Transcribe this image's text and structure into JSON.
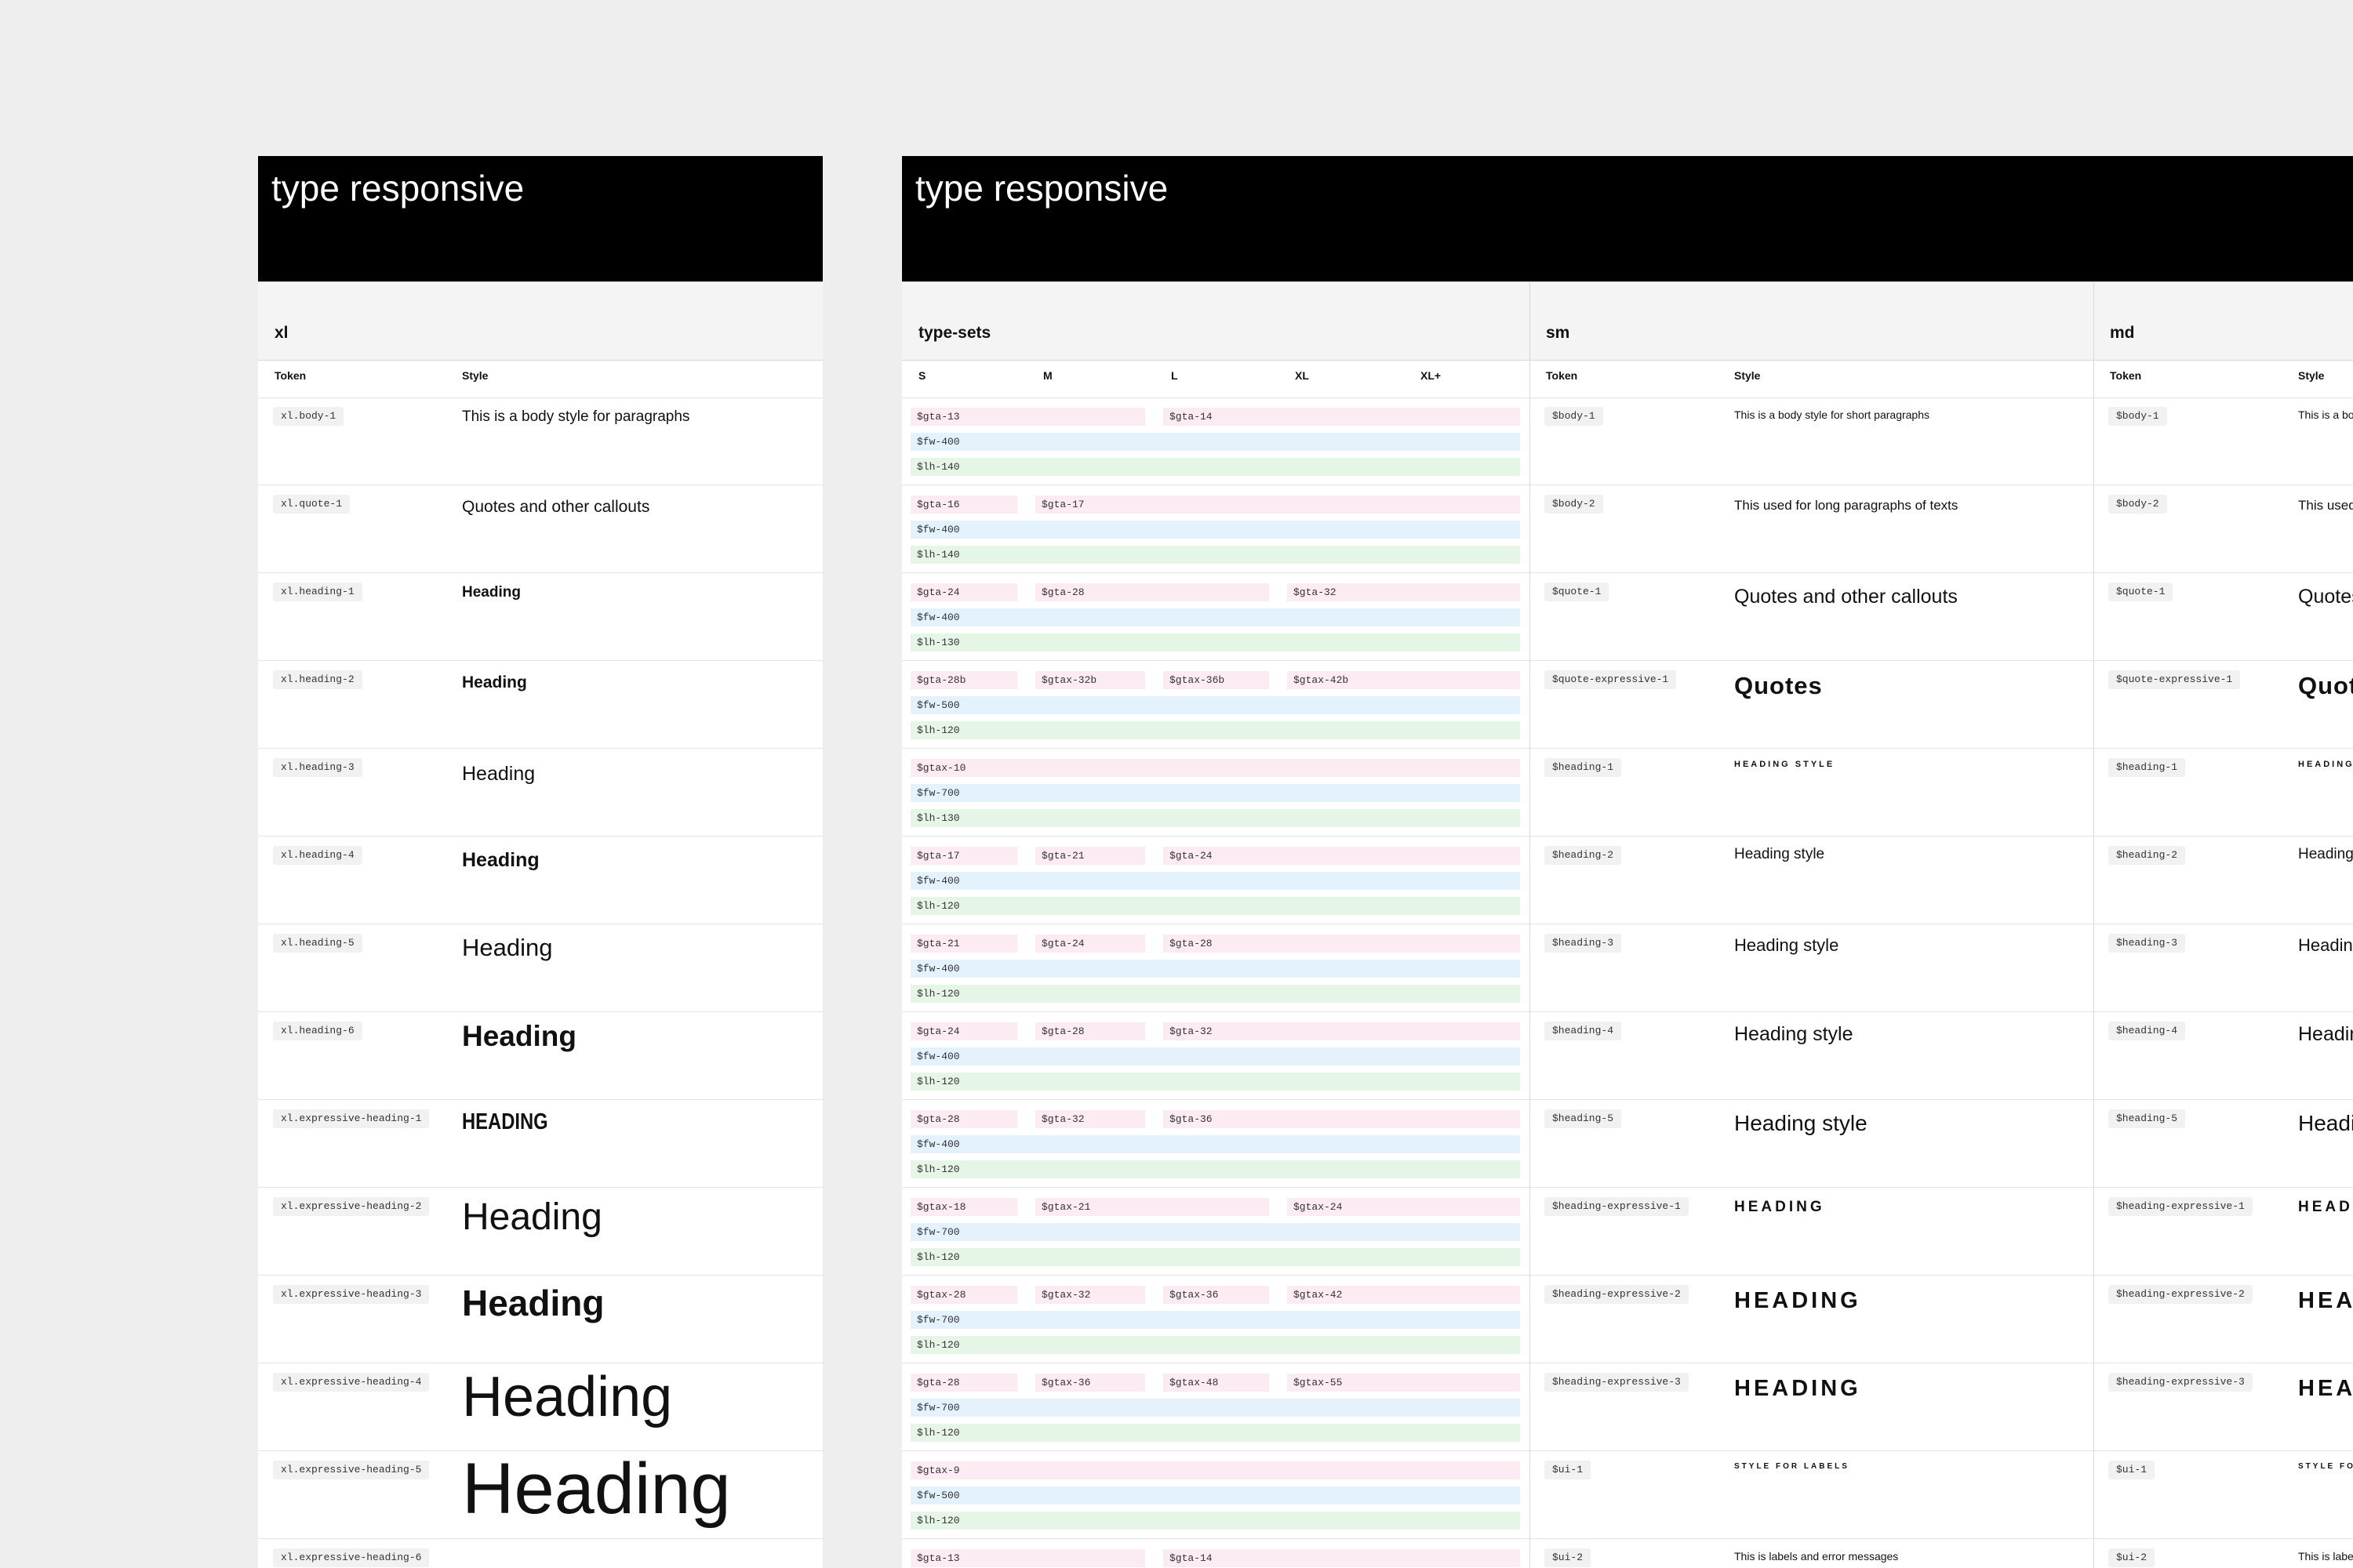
{
  "left_panel": {
    "title": "type responsive",
    "section": "xl",
    "columns": [
      "Token",
      "Style"
    ],
    "rows": [
      {
        "token": "xl.body-1",
        "style": "This is a body style for paragraphs"
      },
      {
        "token": "xl.quote-1",
        "style": "Quotes and other callouts"
      },
      {
        "token": "xl.heading-1",
        "style": "Heading"
      },
      {
        "token": "xl.heading-2",
        "style": "Heading"
      },
      {
        "token": "xl.heading-3",
        "style": "Heading"
      },
      {
        "token": "xl.heading-4",
        "style": "Heading"
      },
      {
        "token": "xl.heading-5",
        "style": "Heading"
      },
      {
        "token": "xl.heading-6",
        "style": "Heading"
      },
      {
        "token": "xl.expressive-heading-1",
        "style": "HEADING"
      },
      {
        "token": "xl.expressive-heading-2",
        "style": "Heading"
      },
      {
        "token": "xl.expressive-heading-3",
        "style": "Heading"
      },
      {
        "token": "xl.expressive-heading-4",
        "style": "Heading"
      },
      {
        "token": "xl.expressive-heading-5",
        "style": "Heading"
      },
      {
        "token": "xl.expressive-heading-6"
      }
    ]
  },
  "right_panel": {
    "title": "type responsive",
    "type_sets": {
      "heading": "type-sets",
      "columns": [
        "S",
        "M",
        "L",
        "XL",
        "XL+"
      ],
      "rows": [
        {
          "sizes": [
            "$gta-13",
            null,
            "$gta-14",
            null,
            null
          ],
          "weight": "$fw-400",
          "line_height": "$lh-140"
        },
        {
          "sizes": [
            "$gta-16",
            "$gta-17",
            null,
            null,
            null
          ],
          "weight": "$fw-400",
          "line_height": "$lh-140"
        },
        {
          "sizes": [
            "$gta-24",
            "$gta-28",
            null,
            "$gta-32",
            null
          ],
          "weight": "$fw-400",
          "line_height": "$lh-130"
        },
        {
          "sizes": [
            "$gta-28b",
            "$gtax-32b",
            "$gtax-36b",
            "$gtax-42b",
            null
          ],
          "weight": "$fw-500",
          "line_height": "$lh-120"
        },
        {
          "sizes": [
            "$gtax-10",
            null,
            null,
            null,
            null
          ],
          "weight": "$fw-700",
          "line_height": "$lh-130"
        },
        {
          "sizes": [
            "$gta-17",
            "$gta-21",
            "$gta-24",
            null,
            null
          ],
          "weight": "$fw-400",
          "line_height": "$lh-120"
        },
        {
          "sizes": [
            "$gta-21",
            "$gta-24",
            "$gta-28",
            null,
            null
          ],
          "weight": "$fw-400",
          "line_height": "$lh-120"
        },
        {
          "sizes": [
            "$gta-24",
            "$gta-28",
            "$gta-32",
            null,
            null
          ],
          "weight": "$fw-400",
          "line_height": "$lh-120"
        },
        {
          "sizes": [
            "$gta-28",
            "$gta-32",
            "$gta-36",
            null,
            null
          ],
          "weight": "$fw-400",
          "line_height": "$lh-120"
        },
        {
          "sizes": [
            "$gtax-18",
            "$gtax-21",
            null,
            "$gtax-24",
            null
          ],
          "weight": "$fw-700",
          "line_height": "$lh-120"
        },
        {
          "sizes": [
            "$gtax-28",
            "$gtax-32",
            "$gtax-36",
            "$gtax-42",
            null
          ],
          "weight": "$fw-700",
          "line_height": "$lh-120"
        },
        {
          "sizes": [
            "$gta-28",
            "$gtax-36",
            "$gtax-48",
            "$gtax-55",
            null
          ],
          "weight": "$fw-700",
          "line_height": "$lh-120"
        },
        {
          "sizes": [
            "$gtax-9",
            null,
            null,
            null,
            null
          ],
          "weight": "$fw-500",
          "line_height": "$lh-120"
        },
        {
          "sizes": [
            "$gta-13",
            null,
            "$gta-14",
            null,
            null
          ]
        }
      ]
    },
    "sm": {
      "heading": "sm",
      "columns": [
        "Token",
        "Style"
      ],
      "rows": [
        {
          "token": "$body-1",
          "style": "This is a body style for short paragraphs"
        },
        {
          "token": "$body-2",
          "style": "This used for long paragraphs of texts"
        },
        {
          "token": "$quote-1",
          "style": "Quotes and other callouts"
        },
        {
          "token": "$quote-expressive-1",
          "style": "Quotes"
        },
        {
          "token": "$heading-1",
          "style": "HEADING STYLE"
        },
        {
          "token": "$heading-2",
          "style": "Heading style"
        },
        {
          "token": "$heading-3",
          "style": "Heading style"
        },
        {
          "token": "$heading-4",
          "style": "Heading style"
        },
        {
          "token": "$heading-5",
          "style": "Heading style"
        },
        {
          "token": "$heading-expressive-1",
          "style": "HEADING"
        },
        {
          "token": "$heading-expressive-2",
          "style": "HEADING"
        },
        {
          "token": "$heading-expressive-3",
          "style": "HEADING"
        },
        {
          "token": "$ui-1",
          "style": "STYLE FOR LABELS"
        },
        {
          "token": "$ui-2",
          "style": "This is labels and error messages"
        }
      ]
    },
    "md": {
      "heading": "md",
      "columns": [
        "Token",
        "Style"
      ],
      "rows": [
        {
          "token": "$body-1",
          "style": "This is a body style for short paragraphs"
        },
        {
          "token": "$body-2",
          "style": "This used for long paragraphs of texts"
        },
        {
          "token": "$quote-1",
          "style": "Quotes and other callouts"
        },
        {
          "token": "$quote-expressive-1",
          "style": "Quotes"
        },
        {
          "token": "$heading-1",
          "style": "HEADING STYLE"
        },
        {
          "token": "$heading-2",
          "style": "Heading style"
        },
        {
          "token": "$heading-3",
          "style": "Heading style"
        },
        {
          "token": "$heading-4",
          "style": "Heading style"
        },
        {
          "token": "$heading-5",
          "style": "Heading style"
        },
        {
          "token": "$heading-expressive-1",
          "style": "HEADING"
        },
        {
          "token": "$heading-expressive-2",
          "style": "HEADING"
        },
        {
          "token": "$heading-expressive-3",
          "style": "HEADING"
        },
        {
          "token": "$ui-1",
          "style": "STYLE FOR LABELS"
        },
        {
          "token": "$ui-2",
          "style": "This is labels and error messages"
        }
      ]
    }
  }
}
